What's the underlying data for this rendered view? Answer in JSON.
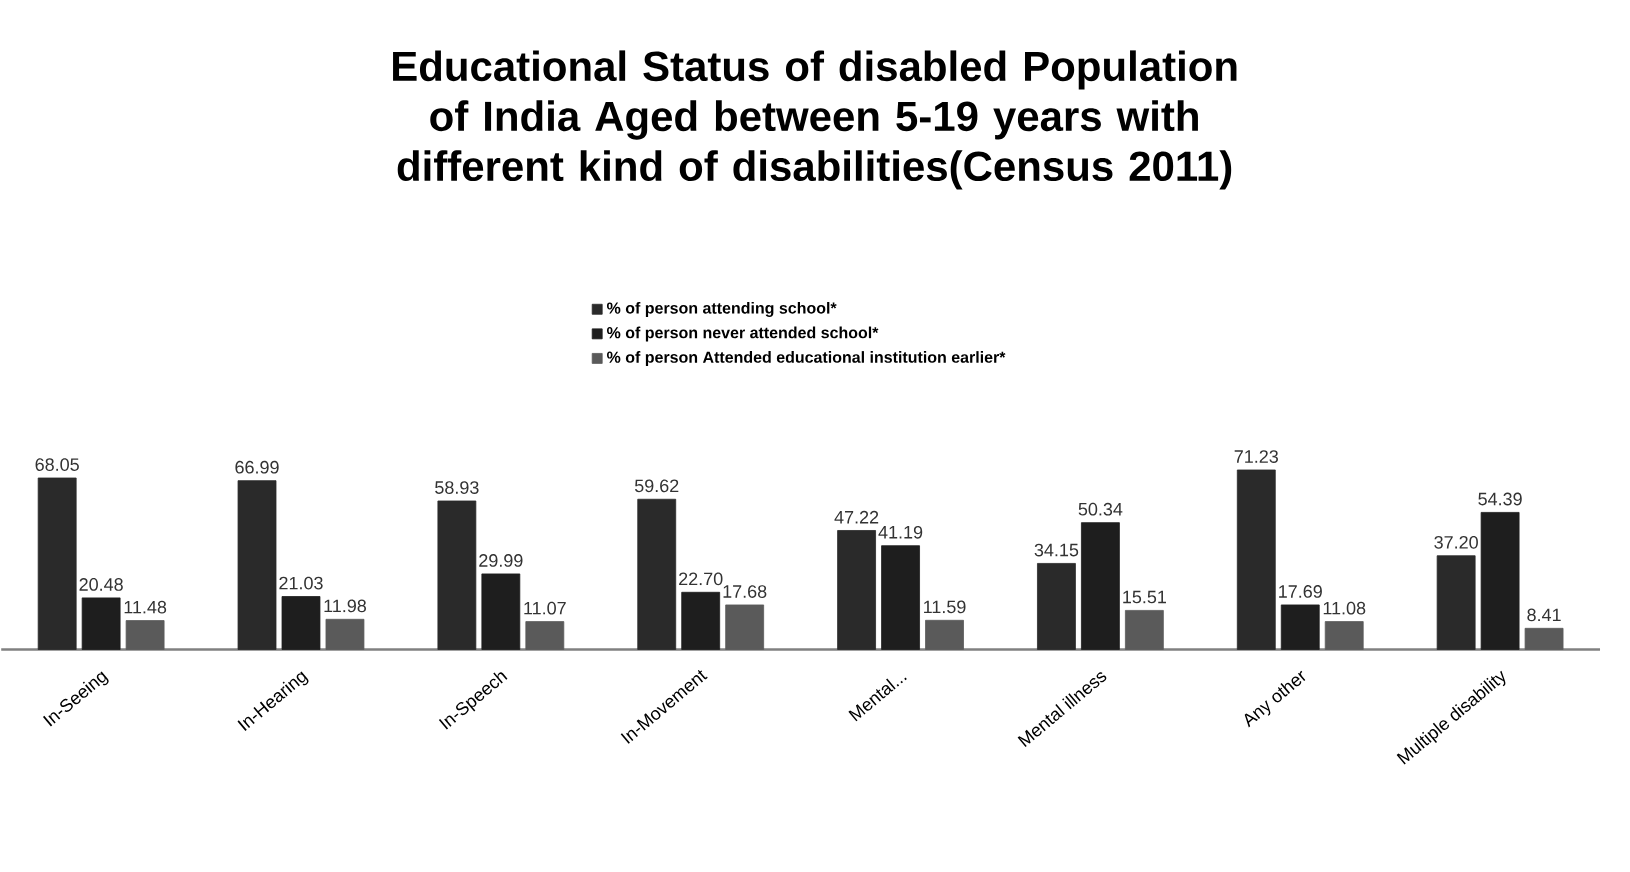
{
  "chart_data": {
    "type": "bar",
    "title": "Educational Status of disabled Population of India Aged between 5-19 years with different kind of  disabilities(Census 2011)",
    "categories": [
      "In-Seeing",
      "In-Hearing",
      "In-Speech",
      "In-Movement",
      "Mental...",
      "Mental illness",
      "Any other",
      "Multiple disability"
    ],
    "series": [
      {
        "name": "% of person attending school*",
        "color": "#2a2a2a",
        "values": [
          68.05,
          66.99,
          58.93,
          59.62,
          47.22,
          34.15,
          71.23,
          37.2
        ],
        "value_labels": [
          "68.05",
          "66.99",
          "58.93",
          "59.62",
          "47.22",
          "34.15",
          "71.23",
          "37.20"
        ]
      },
      {
        "name": "% of person never attended school*",
        "color": "#1e1e1e",
        "values": [
          20.48,
          21.03,
          29.99,
          22.7,
          41.19,
          50.34,
          17.69,
          54.39
        ],
        "value_labels": [
          "20.48",
          "21.03",
          "29.99",
          "22.70",
          "41.19",
          "50.34",
          "17.69",
          "54.39"
        ]
      },
      {
        "name": "% of person Attended educational institution earlier*",
        "color": "#5a5a5a",
        "values": [
          11.48,
          11.98,
          11.07,
          17.68,
          11.59,
          15.51,
          11.08,
          8.41
        ],
        "value_labels": [
          "11.48",
          "11.98",
          "11.07",
          "17.68",
          "11.59",
          "15.51",
          "11.08",
          "8.41"
        ]
      }
    ],
    "legend": "top"
  }
}
